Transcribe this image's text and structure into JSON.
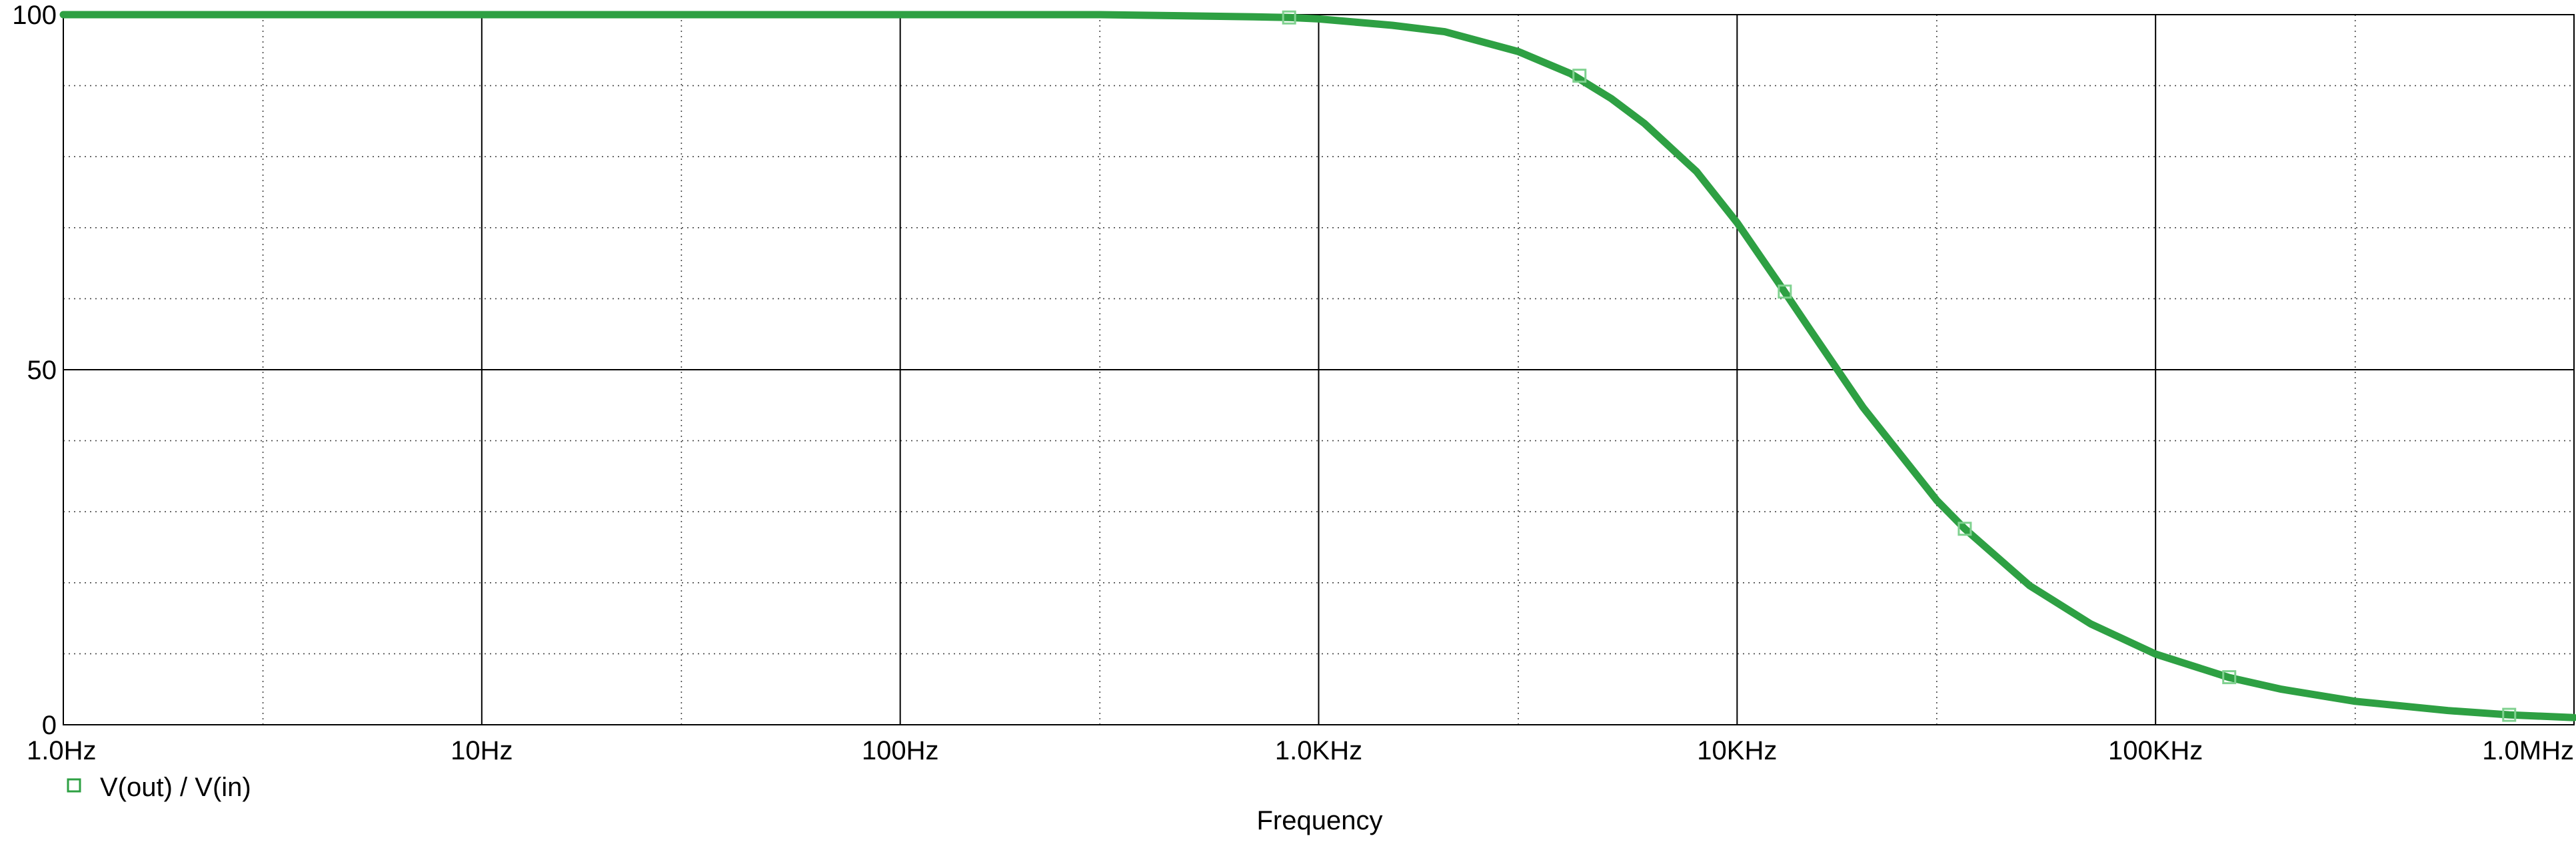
{
  "chart_data": {
    "type": "line",
    "title": "",
    "xlabel": "Frequency",
    "ylabel": "",
    "x_scale": "log",
    "xlim": [
      1,
      1000000
    ],
    "ylim": [
      0,
      100
    ],
    "x_major_ticks": [
      1,
      10,
      100,
      1000,
      10000,
      100000,
      1000000
    ],
    "x_tick_labels": [
      "1.0Hz",
      "10Hz",
      "100Hz",
      "1.0KHz",
      "10KHz",
      "100KHz",
      "1.0MHz"
    ],
    "y_ticks": [
      0,
      50,
      100
    ],
    "y_tick_labels": [
      "0",
      "50",
      "100"
    ],
    "grid": true,
    "legend_position": "bottom-left",
    "series": [
      {
        "name": "V(out) / V(in)",
        "color": "#2ea043",
        "marker": "hollow-square",
        "x": [
          1,
          10,
          100,
          300,
          700,
          850,
          1000,
          1500,
          2000,
          3000,
          4000,
          5000,
          6000,
          8000,
          10000,
          12500,
          15000,
          20000,
          30000,
          35000,
          50000,
          70000,
          100000,
          150000,
          200000,
          300000,
          500000,
          700000,
          1000000
        ],
        "values": [
          100,
          100,
          100,
          100,
          99.7,
          99.6,
          99.4,
          98.5,
          97.6,
          94.8,
          91.7,
          88.2,
          84.7,
          77.9,
          70.7,
          62.4,
          55.5,
          44.7,
          31.6,
          27.6,
          19.6,
          14.2,
          9.95,
          6.65,
          5.0,
          3.3,
          2.0,
          1.4,
          1.0
        ]
      }
    ],
    "markers": [
      {
        "x": 850,
        "y": 99.6
      },
      {
        "x": 4200,
        "y": 91.4
      },
      {
        "x": 13000,
        "y": 61.0
      },
      {
        "x": 35000,
        "y": 27.6
      },
      {
        "x": 150000,
        "y": 6.7
      },
      {
        "x": 700000,
        "y": 1.4
      }
    ]
  }
}
